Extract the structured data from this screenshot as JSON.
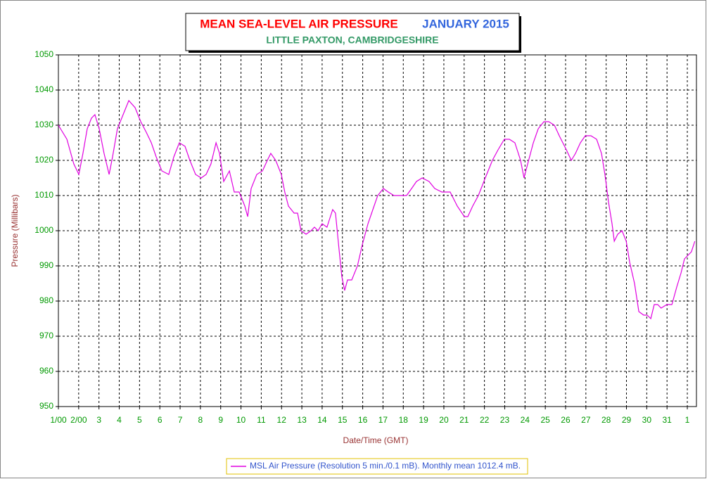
{
  "chart_data": {
    "type": "line",
    "title": "MEAN SEA-LEVEL AIR PRESSURE",
    "title_month": "JANUARY 2015",
    "subtitle": "LITTLE PAXTON, CAMBRIDGESHIRE",
    "xlabel": "Date/Time (GMT)",
    "ylabel": "Pressure (Millibars)",
    "xlim": [
      1,
      32.45
    ],
    "ylim": [
      950,
      1050
    ],
    "xticks": [
      {
        "value": 1,
        "label": "1/00"
      },
      {
        "value": 2,
        "label": "2/00"
      },
      3,
      4,
      5,
      6,
      7,
      8,
      9,
      10,
      11,
      12,
      13,
      14,
      15,
      16,
      17,
      18,
      19,
      20,
      21,
      22,
      23,
      24,
      25,
      26,
      27,
      28,
      29,
      30,
      31,
      {
        "value": 32,
        "label": "1"
      }
    ],
    "yticks": [
      950,
      960,
      970,
      980,
      990,
      1000,
      1010,
      1020,
      1030,
      1040,
      1050
    ],
    "grid": true,
    "legend": "bottom",
    "series": [
      {
        "name": "MSL Air Pressure (Resolution 5 min./0.1 mB). Monthly mean 1012.4 mB.",
        "color": "#e000e0",
        "x": [
          1.0,
          1.42,
          1.76,
          2.01,
          2.21,
          2.42,
          2.63,
          2.8,
          3.01,
          3.25,
          3.5,
          3.67,
          3.91,
          4.19,
          4.47,
          4.78,
          5.06,
          5.33,
          5.58,
          5.82,
          6.1,
          6.44,
          6.69,
          6.96,
          7.24,
          7.48,
          7.76,
          8.04,
          8.28,
          8.52,
          8.77,
          8.94,
          9.15,
          9.43,
          9.67,
          9.91,
          10.19,
          10.33,
          10.5,
          10.78,
          11.06,
          11.3,
          11.47,
          11.71,
          11.99,
          12.16,
          12.34,
          12.62,
          12.79,
          12.96,
          13.21,
          13.45,
          13.62,
          13.8,
          14.0,
          14.24,
          14.35,
          14.52,
          14.66,
          14.83,
          14.97,
          15.11,
          15.25,
          15.46,
          15.74,
          15.98,
          16.26,
          16.5,
          16.74,
          17.02,
          17.26,
          17.54,
          17.89,
          18.16,
          18.41,
          18.65,
          18.93,
          19.27,
          19.55,
          19.9,
          20.31,
          20.66,
          21.01,
          21.18,
          21.42,
          21.7,
          22.04,
          22.39,
          22.67,
          22.98,
          23.23,
          23.5,
          23.78,
          23.95,
          24.13,
          24.41,
          24.65,
          24.93,
          25.17,
          25.45,
          25.69,
          26.04,
          26.28,
          26.49,
          26.73,
          26.97,
          27.25,
          27.53,
          27.77,
          27.94,
          28.12,
          28.29,
          28.4,
          28.57,
          28.78,
          28.99,
          29.16,
          29.4,
          29.61,
          29.85,
          30.02,
          30.2,
          30.37,
          30.54,
          30.71,
          30.99,
          31.24,
          31.48,
          31.69,
          31.86,
          32.03,
          32.2,
          32.37
        ],
        "values": [
          1030,
          1026,
          1019,
          1016,
          1022,
          1029,
          1032,
          1033,
          1029,
          1022,
          1016,
          1021,
          1029,
          1033,
          1037,
          1035,
          1031,
          1028,
          1025,
          1021,
          1017,
          1016,
          1021,
          1025,
          1024,
          1020,
          1016,
          1015,
          1016,
          1019,
          1025,
          1022,
          1014,
          1017,
          1011,
          1011,
          1007,
          1004,
          1012,
          1016,
          1017,
          1020,
          1022,
          1020,
          1016,
          1011,
          1007,
          1005,
          1005,
          1000,
          999,
          1000,
          1001,
          1000,
          1002,
          1001,
          1003,
          1006,
          1005,
          995,
          987,
          983,
          986,
          986,
          990,
          996,
          1002,
          1006,
          1010,
          1012,
          1011,
          1010,
          1010,
          1010,
          1012,
          1014,
          1015,
          1014,
          1012,
          1011,
          1011,
          1007,
          1004,
          1004,
          1007,
          1010,
          1015,
          1020,
          1023,
          1026,
          1026,
          1025,
          1020,
          1015,
          1019,
          1025,
          1029,
          1031,
          1031,
          1030,
          1027,
          1023,
          1020,
          1022,
          1025,
          1027,
          1027,
          1026,
          1022,
          1016,
          1008,
          1002,
          997,
          999,
          1000,
          997,
          991,
          985,
          977,
          976,
          976,
          975,
          979,
          979,
          978,
          979,
          979,
          984,
          988,
          992,
          993,
          994,
          997
        ]
      }
    ]
  }
}
